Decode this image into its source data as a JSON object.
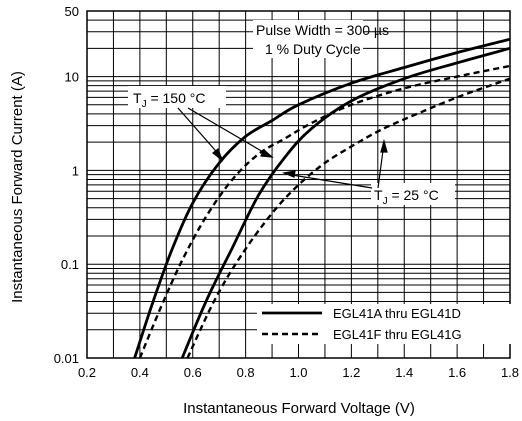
{
  "chart_data": {
    "type": "line",
    "xlabel": "Instantaneous Forward Voltage (V)",
    "ylabel": "Instantaneous Forward Current (A)",
    "xlim": [
      0.2,
      1.8
    ],
    "ylim": [
      0.01,
      50
    ],
    "yscale": "log",
    "grid": true,
    "x_ticks": [
      "0.2",
      "0.4",
      "0.6",
      "0.8",
      "1.0",
      "1.2",
      "1.4",
      "1.6",
      "1.8"
    ],
    "y_ticks": [
      "0.01",
      "0.1",
      "1",
      "10",
      "50"
    ],
    "annotations": {
      "pulse_width": "Pulse Width = 300 µs",
      "duty_cycle": "1 % Duty Cycle",
      "tj_high_prefix": "T",
      "tj_high_sub": "J",
      "tj_high_value": " = 150 °C",
      "tj_low_prefix": "T",
      "tj_low_sub": "J",
      "tj_low_value": " = 25 °C"
    },
    "legend": {
      "position": "bottom-right",
      "entries": [
        {
          "label": "EGL41A thru EGL41D",
          "style": "solid"
        },
        {
          "label": "EGL41F thru EGL41G",
          "style": "dashed"
        }
      ]
    },
    "series": [
      {
        "style": "solid",
        "temperature": "150 °C",
        "x": [
          0.38,
          0.45,
          0.52,
          0.6,
          0.7,
          0.8,
          0.9,
          1.0,
          1.2,
          1.4,
          1.6,
          1.8
        ],
        "y": [
          0.01,
          0.04,
          0.14,
          0.45,
          1.2,
          2.3,
          3.4,
          5,
          8.5,
          12.5,
          18,
          25
        ]
      },
      {
        "style": "dashed",
        "temperature": "150 °C",
        "x": [
          0.4,
          0.48,
          0.56,
          0.65,
          0.75,
          0.85,
          0.95,
          1.05,
          1.2,
          1.4,
          1.6,
          1.8
        ],
        "y": [
          0.01,
          0.035,
          0.11,
          0.32,
          0.8,
          1.5,
          2.2,
          3.2,
          5,
          7.5,
          10,
          13
        ]
      },
      {
        "style": "solid",
        "temperature": "25 °C",
        "x": [
          0.56,
          0.65,
          0.75,
          0.85,
          0.95,
          1.05,
          1.2,
          1.4,
          1.6,
          1.8
        ],
        "y": [
          0.01,
          0.04,
          0.15,
          0.55,
          1.4,
          2.8,
          5.5,
          9.5,
          14,
          20
        ]
      },
      {
        "style": "dashed",
        "temperature": "25 °C",
        "x": [
          0.58,
          0.68,
          0.78,
          0.9,
          1.0,
          1.1,
          1.2,
          1.3,
          1.4,
          1.6,
          1.8
        ],
        "y": [
          0.01,
          0.04,
          0.12,
          0.35,
          0.7,
          1.2,
          1.8,
          2.6,
          3.5,
          6,
          9.5
        ]
      }
    ]
  }
}
